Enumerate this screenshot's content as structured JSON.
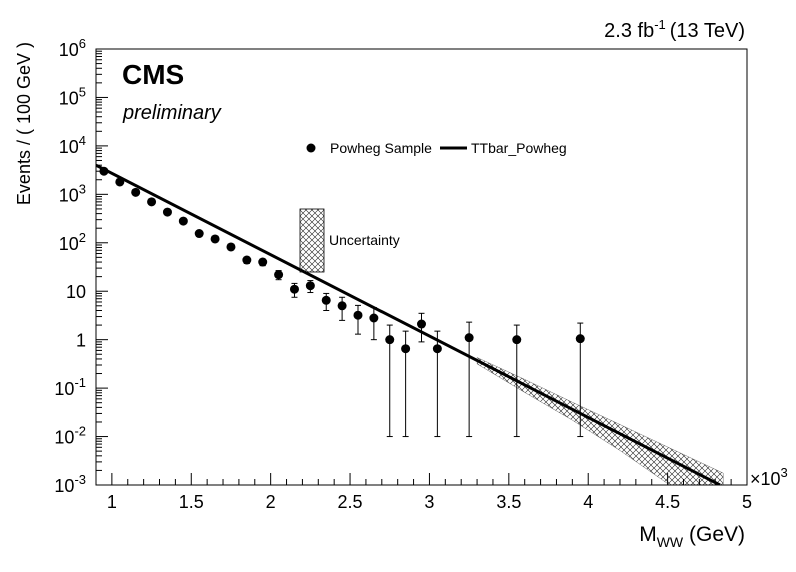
{
  "chart_data": {
    "type": "scatter",
    "header": {
      "lumi_value": "2.3 fb",
      "lumi_exponent": "-1",
      "energy": "(13 TeV)"
    },
    "experiment": "CMS",
    "status": "preliminary",
    "xlabel": {
      "main": "M",
      "subscript": "WW",
      "unit": " (GeV)"
    },
    "x_multiplier": {
      "base": "×10",
      "exponent": "3"
    },
    "ylabel": "Events / ( 100 GeV )",
    "xlim": [
      0.9,
      5.0
    ],
    "ylim": [
      0.001,
      1000000
    ],
    "yscale": "log",
    "x_ticks": [
      {
        "value": 1.0,
        "label": "1"
      },
      {
        "value": 1.5,
        "label": "1.5"
      },
      {
        "value": 2.0,
        "label": "2"
      },
      {
        "value": 2.5,
        "label": "2.5"
      },
      {
        "value": 3.0,
        "label": "3"
      },
      {
        "value": 3.5,
        "label": "3.5"
      },
      {
        "value": 4.0,
        "label": "4"
      },
      {
        "value": 4.5,
        "label": "4.5"
      },
      {
        "value": 5.0,
        "label": "5"
      }
    ],
    "y_ticks": [
      {
        "value": 0.001,
        "base": "10",
        "exponent": "-3"
      },
      {
        "value": 0.01,
        "base": "10",
        "exponent": "-2"
      },
      {
        "value": 0.1,
        "base": "10",
        "exponent": "-1"
      },
      {
        "value": 1,
        "base": "1",
        "exponent": ""
      },
      {
        "value": 10,
        "base": "10",
        "exponent": ""
      },
      {
        "value": 100,
        "base": "10",
        "exponent": "2"
      },
      {
        "value": 1000,
        "base": "10",
        "exponent": "3"
      },
      {
        "value": 10000,
        "base": "10",
        "exponent": "4"
      },
      {
        "value": 100000,
        "base": "10",
        "exponent": "5"
      },
      {
        "value": 1000000,
        "base": "10",
        "exponent": "6"
      }
    ],
    "legend": {
      "position": "top-center",
      "data_label": "Powheg Sample",
      "fit_label": "TTbar_Powheg",
      "uncertainty_label": "Uncertainty"
    },
    "fit_line": {
      "name": "TTbar_Powheg",
      "x": [
        0.9,
        4.83
      ],
      "y": [
        4000,
        0.001
      ]
    },
    "uncertainty_band": {
      "name": "Uncertainty",
      "x": [
        3.3,
        3.6,
        3.9,
        4.2,
        4.5,
        4.85
      ],
      "relative_half_width": [
        0.15,
        0.3,
        0.4,
        0.55,
        0.7,
        0.9
      ]
    },
    "series": [
      {
        "name": "Powheg Sample",
        "x": [
          0.95,
          1.05,
          1.15,
          1.25,
          1.35,
          1.45,
          1.55,
          1.65,
          1.75,
          1.85,
          1.95,
          2.05,
          2.15,
          2.25,
          2.35,
          2.45,
          2.55,
          2.65,
          2.75,
          2.85,
          2.95,
          3.05,
          3.25,
          3.55,
          3.95
        ],
        "y": [
          3000,
          1800,
          1100,
          700,
          430,
          280,
          155,
          120,
          82,
          44,
          40,
          22,
          11,
          13,
          6.5,
          5.0,
          3.2,
          2.8,
          1.0,
          0.65,
          2.1,
          0.65,
          1.1,
          1.0,
          1.05
        ],
        "y_err_low": [
          55,
          42,
          33,
          26,
          21,
          17,
          12,
          11,
          9,
          6.6,
          6.3,
          4.7,
          3.5,
          3.6,
          2.5,
          2.5,
          1.9,
          1.8,
          0.99,
          0.64,
          1.2,
          0.64,
          1.09,
          0.99,
          1.04
        ],
        "y_err_high": [
          55,
          42,
          33,
          26,
          21,
          17,
          12,
          11,
          9,
          6.6,
          6.3,
          4.7,
          3.5,
          3.6,
          2.5,
          2.5,
          1.9,
          1.8,
          1.0,
          0.85,
          1.4,
          0.85,
          1.2,
          1.0,
          1.15
        ]
      }
    ]
  }
}
